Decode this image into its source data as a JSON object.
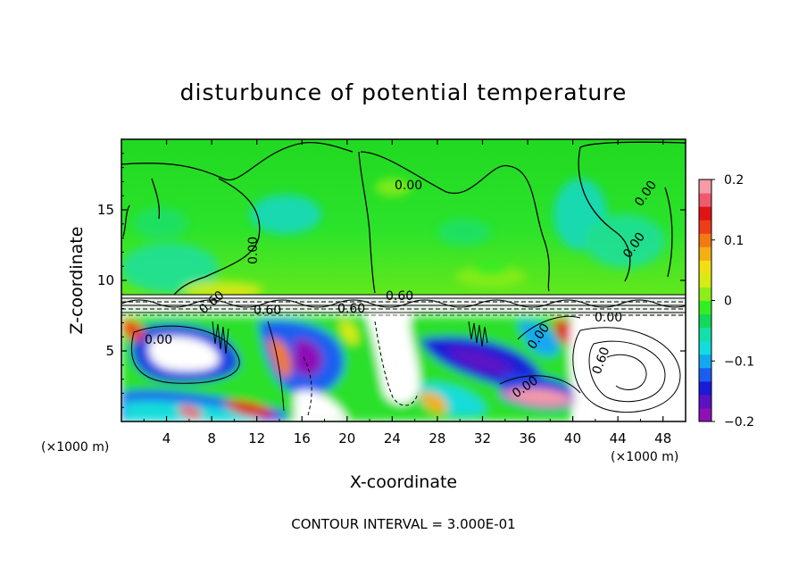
{
  "chart_data": {
    "type": "heatmap",
    "title": "disturbunce of potential temperature",
    "xlabel": "X-coordinate",
    "ylabel": "Z-coordinate",
    "x_unit": "(×1000 m)",
    "x_unit_right": "(×1000 m)",
    "xlim": [
      0,
      50
    ],
    "ylim": [
      0,
      20
    ],
    "x_ticks": [
      "4",
      "8",
      "12",
      "16",
      "20",
      "24",
      "28",
      "32",
      "36",
      "40",
      "44",
      "48"
    ],
    "y_ticks": [
      "5",
      "10",
      "15"
    ],
    "colorbar": {
      "min": -0.2,
      "max": 0.2,
      "tick_labels": [
        "0.2",
        "0.1",
        "0",
        "−0.1",
        "−0.2"
      ],
      "colors": [
        "#8e11b6",
        "#5b12c4",
        "#1a1ad8",
        "#1a5ef0",
        "#14a8f0",
        "#12dcdc",
        "#12e0a8",
        "#14d85a",
        "#33ee22",
        "#8ced17",
        "#d6ec12",
        "#f0e012",
        "#f2b014",
        "#f27a14",
        "#ee3c18",
        "#e01414",
        "#f05a6e",
        "#f59aa8"
      ]
    },
    "contour_labels": [
      "0.00",
      "0.00",
      "0.00",
      "0.00",
      "0.60",
      "0.60",
      "0.60",
      "0.00",
      "0.00",
      "0.00",
      "0.60",
      "0.00",
      "0.60"
    ],
    "contour_interval_text": "CONTOUR INTERVAL = 3.000E-01",
    "grid": false
  }
}
